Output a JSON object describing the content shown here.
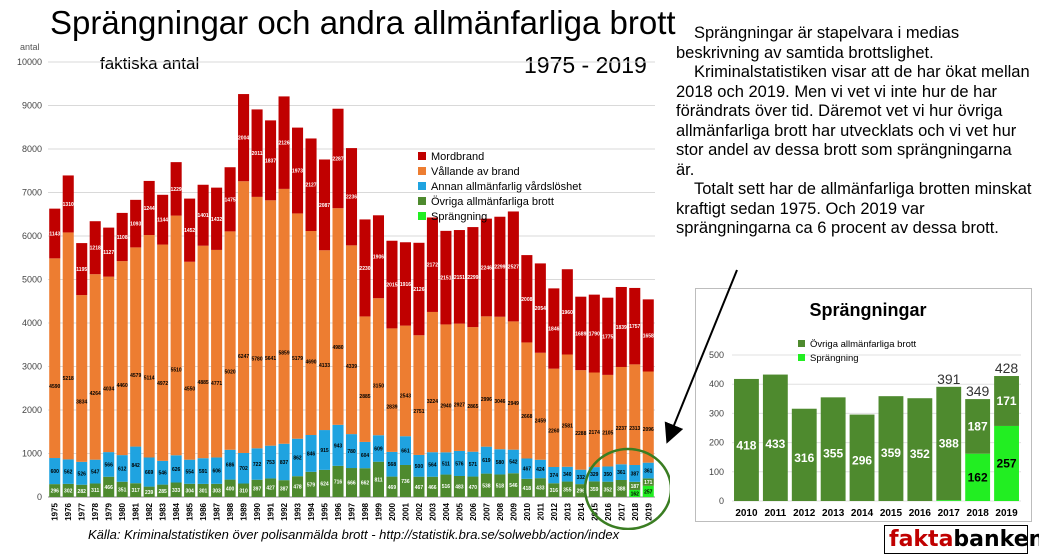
{
  "header": {
    "title": "Sprängningar och andra allmänfarliga brott",
    "subtitle_left": "faktiska antal",
    "subtitle_right": "1975 - 2019"
  },
  "source": "Källa: Kriminalstatistiken över polisanmälda brott - http://statistik.bra.se/solwebb/action/index",
  "paragraphs": [
    "Sprängningar är stapelvara i medias beskrivning av samtida brottslighet.",
    "Kriminalstatistiken visar att de har ökat mellan 2018 och 2019. Men vi vet vi inte hur de har förändrats över tid. Däremot vet vi hur övriga allmänfarliga brott har utvecklats och vi vet hur stor andel av dessa brott som sprängningarna är.",
    "Totalt sett har de allmänfarliga brotten minskat kraftigt sedan 1975. Och 2019 var sprängningarna ca 6 procent av dessa brott."
  ],
  "brand": {
    "part1": "fakta",
    "part2": "banken"
  },
  "colors": {
    "mordbrand": "#c00000",
    "vallande": "#ed7d31",
    "vardsloshet": "#1fa3e0",
    "ovriga": "#4e8a2e",
    "sprangning": "#22ee22",
    "circle": "#3a7d22"
  },
  "chart_data": [
    {
      "type": "bar",
      "stacked": true,
      "ylabel": "antal",
      "ylim": [
        0,
        10000
      ],
      "yticks": [
        0,
        1000,
        2000,
        3000,
        4000,
        5000,
        6000,
        7000,
        8000,
        9000,
        10000
      ],
      "legend_position": "right",
      "categories": [
        "1975",
        "1976",
        "1977",
        "1978",
        "1979",
        "1980",
        "1981",
        "1982",
        "1983",
        "1984",
        "1985",
        "1986",
        "1987",
        "1988",
        "1989",
        "1990",
        "1991",
        "1992",
        "1993",
        "1994",
        "1995",
        "1996",
        "1997",
        "1998",
        "1999",
        "2000",
        "2001",
        "2002",
        "2003",
        "2004",
        "2005",
        "2006",
        "2007",
        "2008",
        "2009",
        "2010",
        "2011",
        "2012",
        "2013",
        "2014",
        "2015",
        "2016",
        "2017",
        "2018",
        "2019"
      ],
      "series": [
        {
          "name": "Sprängning",
          "color_key": "sprangning",
          "values": [
            0,
            0,
            0,
            0,
            0,
            0,
            0,
            0,
            0,
            0,
            0,
            0,
            0,
            0,
            0,
            0,
            0,
            0,
            0,
            0,
            0,
            0,
            0,
            0,
            0,
            0,
            0,
            0,
            0,
            0,
            0,
            0,
            0,
            0,
            0,
            0,
            0,
            0,
            0,
            0,
            0,
            0,
            3,
            162,
            257
          ]
        },
        {
          "name": "Övriga allmänfarliga brott",
          "color_key": "ovriga",
          "values": [
            296,
            302,
            282,
            311,
            466,
            351,
            317,
            239,
            285,
            333,
            304,
            301,
            303,
            400,
            310,
            397,
            427,
            387,
            478,
            579,
            624,
            716,
            666,
            662,
            811,
            469,
            736,
            467,
            466,
            516,
            483,
            470,
            538,
            518,
            546,
            418,
            433,
            316,
            355,
            296,
            359,
            352,
            388,
            187,
            171
          ]
        },
        {
          "name": "Annan allmänfarlig vårdslöshet",
          "color_key": "vardsloshet",
          "values": [
            600,
            562,
            526,
            547,
            566,
            612,
            842,
            669,
            546,
            626,
            554,
            591,
            606,
            686,
            702,
            722,
            753,
            837,
            862,
            846,
            915,
            943,
            780,
            604,
            609,
            568,
            661,
            500,
            564,
            511,
            576,
            571,
            619,
            580,
            542,
            467,
            424,
            374,
            340,
            332,
            329,
            350,
            361,
            387,
            361
          ],
          "labels": [
            "600",
            "562",
            "526",
            "547",
            "566",
            "612",
            "842",
            "669",
            "546",
            "626",
            "554",
            "591",
            "606",
            "686",
            "702",
            "722",
            "753",
            "837",
            "862",
            "846",
            "915",
            "943",
            "780",
            "604",
            "609",
            "568",
            "661",
            "500",
            "564",
            "511",
            "576",
            "571",
            "619",
            "580",
            "542",
            "467",
            "424",
            "374",
            "340",
            "332",
            "329",
            "350",
            "361",
            "387",
            "361"
          ]
        },
        {
          "name": "Vållande av brand",
          "color_key": "vallande",
          "values": [
            4590,
            5218,
            3834,
            4264,
            4034,
            4460,
            4579,
            5114,
            4972,
            5510,
            4550,
            4885,
            4771,
            5020,
            6247,
            5780,
            5641,
            5859,
            5179,
            4690,
            4133,
            4980,
            4339,
            2885,
            3150,
            2839,
            2543,
            2751,
            3224,
            2940,
            2927,
            2865,
            2996,
            3046,
            2949,
            2668,
            2459,
            2260,
            2581,
            2288,
            2174,
            2105,
            2237,
            2313,
            2096
          ]
        },
        {
          "name": "Mordbrand",
          "color_key": "mordbrand",
          "values": [
            1143,
            1310,
            1195,
            1218,
            1127,
            1108,
            1093,
            1244,
            1144,
            1229,
            1452,
            1401,
            1432,
            1475,
            2004,
            2011,
            1837,
            2126,
            1973,
            2127,
            2087,
            2287,
            2236,
            2230,
            1906,
            2015,
            1916,
            2126,
            2172,
            2151,
            2151,
            2299,
            2246,
            2299,
            2527,
            2008,
            2054,
            1846,
            1960,
            1689,
            1790,
            1775,
            1839,
            1757,
            1658
          ]
        }
      ],
      "highlight_circle_years": [
        "2016",
        "2019"
      ]
    },
    {
      "type": "bar",
      "stacked": true,
      "title": "Sprängningar",
      "ylim": [
        0,
        500
      ],
      "yticks": [
        0,
        100,
        200,
        300,
        400,
        500
      ],
      "legend_position": "top-left",
      "categories": [
        "2010",
        "2011",
        "2012",
        "2013",
        "2014",
        "2015",
        "2016",
        "2017",
        "2018",
        "2019"
      ],
      "series": [
        {
          "name": "Sprängning",
          "color_key": "sprangning",
          "values": [
            0,
            0,
            0,
            0,
            0,
            0,
            0,
            3,
            162,
            257
          ]
        },
        {
          "name": "Övriga allmänfarliga brott",
          "color_key": "ovriga",
          "values": [
            418,
            433,
            316,
            355,
            296,
            359,
            352,
            388,
            187,
            171
          ]
        }
      ],
      "totals": [
        null,
        null,
        null,
        null,
        null,
        null,
        null,
        "391",
        "349",
        "428"
      ]
    }
  ]
}
